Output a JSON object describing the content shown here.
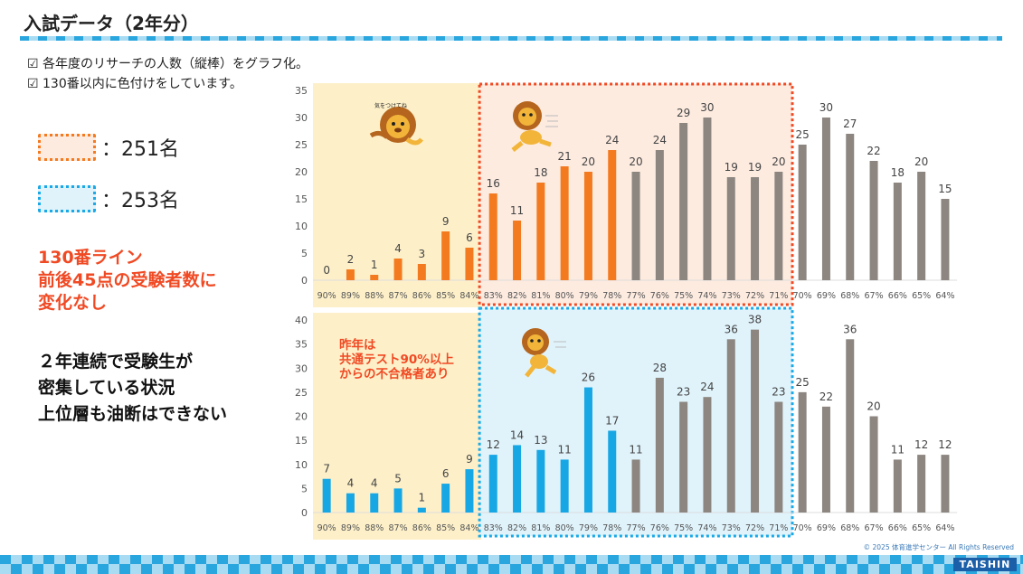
{
  "header": {
    "title": "入試データ（2年分）"
  },
  "notes": [
    "☑ 各年度のリサーチの人数（縦棒）をグラフ化。",
    "☑ 130番以内に色付けをしています。"
  ],
  "legend": [
    {
      "label": "：251名",
      "border_color": "#f47a20",
      "fill_color": "#fdebe0"
    },
    {
      "label": "：253名",
      "border_color": "#1aa9e6",
      "fill_color": "#e0f3fb"
    }
  ],
  "messages": {
    "red": [
      "130番ライン",
      "前後45点の受験者数に",
      "変化なし"
    ],
    "black": [
      "２年連続で受験生が",
      "密集している状況",
      "上位層も油断はできない"
    ]
  },
  "annotation": [
    "昨年は",
    "共通テスト90%以上",
    "からの不合格者あり"
  ],
  "lion_caption": "気をつけてね",
  "copyright": "© 2025 体育進学センター All Rights Reserved",
  "brand": "TAISHIN",
  "colors": {
    "orange": "#f47a20",
    "blue": "#18a7e5",
    "gray": "#8c8580",
    "yellow_bg": "#fdf0c9",
    "accent_red": "#f04a24"
  },
  "chart_data": [
    {
      "type": "bar",
      "categories": [
        "90%",
        "89%",
        "88%",
        "87%",
        "86%",
        "85%",
        "84%",
        "83%",
        "82%",
        "81%",
        "80%",
        "79%",
        "78%",
        "77%",
        "76%",
        "75%",
        "74%",
        "73%",
        "72%",
        "71%",
        "70%",
        "69%",
        "68%",
        "67%",
        "66%",
        "65%",
        "64%"
      ],
      "values": [
        0,
        2,
        1,
        4,
        3,
        9,
        6,
        16,
        11,
        18,
        21,
        20,
        24,
        20,
        24,
        29,
        30,
        19,
        19,
        20,
        25,
        30,
        27,
        22,
        18,
        20,
        15
      ],
      "colored_count": 13,
      "bar_color": "#f47a20",
      "ylim": [
        0,
        35
      ],
      "yticks": [
        0,
        5,
        10,
        15,
        20,
        25,
        30,
        35
      ],
      "highlight": {
        "border_color": "#f04a24",
        "fill_color": "#fdebe0"
      },
      "data_labels": true
    },
    {
      "type": "bar",
      "categories": [
        "90%",
        "89%",
        "88%",
        "87%",
        "86%",
        "85%",
        "84%",
        "83%",
        "82%",
        "81%",
        "80%",
        "79%",
        "78%",
        "77%",
        "76%",
        "75%",
        "74%",
        "73%",
        "72%",
        "71%",
        "70%",
        "69%",
        "68%",
        "67%",
        "66%",
        "65%",
        "64%"
      ],
      "values": [
        7,
        4,
        4,
        5,
        1,
        6,
        9,
        12,
        14,
        13,
        11,
        26,
        17,
        11,
        28,
        23,
        24,
        36,
        38,
        23,
        25,
        22,
        36,
        20,
        11,
        12,
        12
      ],
      "colored_count": 13,
      "bar_color": "#18a7e5",
      "ylim": [
        0,
        40
      ],
      "yticks": [
        0,
        5,
        10,
        15,
        20,
        25,
        30,
        35,
        40
      ],
      "highlight": {
        "border_color": "#1aa9e6",
        "fill_color": "#e0f3fb"
      },
      "data_labels": true
    }
  ]
}
